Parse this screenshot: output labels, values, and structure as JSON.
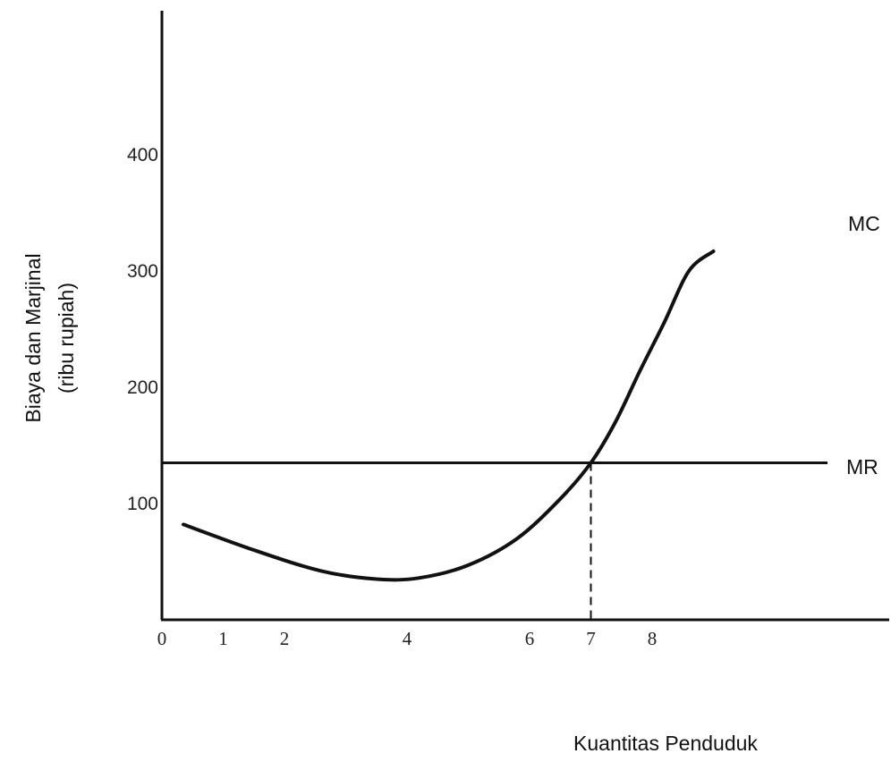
{
  "chart_data": {
    "type": "line",
    "xlabel": "Kuantitas Penduduk",
    "ylabel_line1": "Biaya dan Marjinal",
    "ylabel_line2": "(ribu rupiah)",
    "x_ticks": [
      "0",
      "1",
      "2",
      "4",
      "6",
      "7",
      "8"
    ],
    "x_tick_values": [
      0,
      1,
      2,
      4,
      6,
      7,
      8
    ],
    "y_ticks": [
      "100",
      "200",
      "300",
      "400"
    ],
    "y_tick_values": [
      100,
      200,
      300,
      400
    ],
    "xlim": [
      0,
      10
    ],
    "ylim": [
      0,
      520
    ],
    "grid": false,
    "series": [
      {
        "name": "MC",
        "x": [
          0.35,
          1.5,
          2.6,
          3.5,
          4.2,
          5.0,
          5.8,
          6.5,
          7.0,
          7.4,
          7.8,
          8.2,
          8.6,
          9.0
        ],
        "y": [
          82,
          60,
          42,
          35,
          36,
          47,
          70,
          104,
          135,
          170,
          214,
          256,
          300,
          317
        ]
      },
      {
        "name": "MR",
        "x": [
          0,
          9.0
        ],
        "y": [
          135,
          135
        ]
      }
    ],
    "annotations": [
      {
        "type": "vertical-dashed",
        "x": 7,
        "y_from": 0,
        "y_to": 135
      }
    ],
    "colors": {
      "line": "#111111",
      "text": "#222222"
    }
  }
}
